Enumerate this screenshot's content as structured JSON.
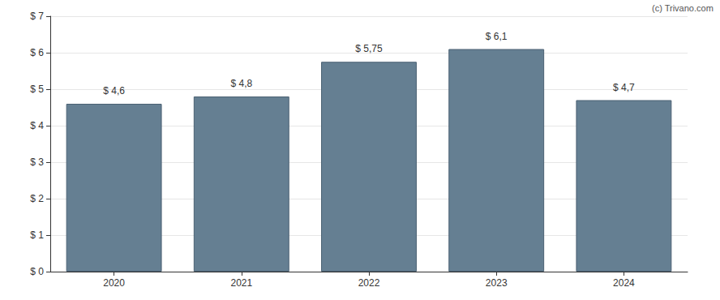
{
  "chart_data": {
    "type": "bar",
    "categories": [
      "2020",
      "2021",
      "2022",
      "2023",
      "2024"
    ],
    "values": [
      4.6,
      4.8,
      5.75,
      6.1,
      4.7
    ],
    "value_labels": [
      "$ 4,6",
      "$ 4,8",
      "$ 5,75",
      "$ 6,1",
      "$ 4,7"
    ],
    "data_labels": true,
    "color": "#657f92",
    "ylim": [
      0,
      7
    ],
    "yticks": [
      {
        "value": 0,
        "label": "$ 0"
      },
      {
        "value": 1,
        "label": "$ 1"
      },
      {
        "value": 2,
        "label": "$ 2"
      },
      {
        "value": 3,
        "label": "$ 3"
      },
      {
        "value": 4,
        "label": "$ 4"
      },
      {
        "value": 5,
        "label": "$ 5"
      },
      {
        "value": 6,
        "label": "$ 6"
      },
      {
        "value": 7,
        "label": "$ 7"
      }
    ],
    "grid": true,
    "annotations": [
      "(c) Trivano.com"
    ]
  }
}
